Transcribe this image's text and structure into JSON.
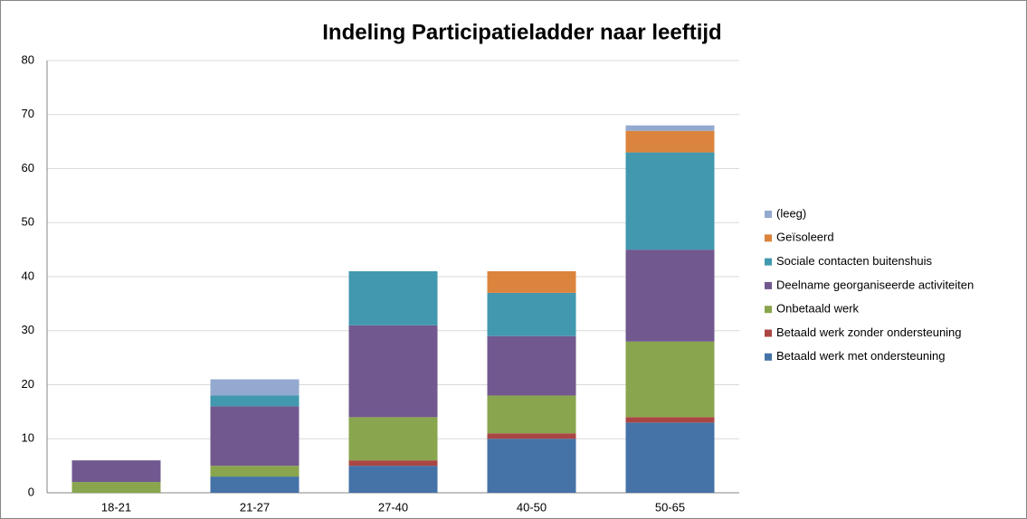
{
  "chart_data": {
    "type": "stacked_bar",
    "title": "Indeling Participatieladder naar leeftijd",
    "categories": [
      "18-21",
      "21-27",
      "27-40",
      "40-50",
      "50-65"
    ],
    "series": [
      {
        "name": "Betaald werk met ondersteuning",
        "color": "#4572a7",
        "values": [
          0,
          3,
          5,
          10,
          13
        ]
      },
      {
        "name": "Betaald werk zonder ondersteuning",
        "color": "#aa4643",
        "values": [
          0,
          0,
          1,
          1,
          1
        ]
      },
      {
        "name": "Onbetaald werk",
        "color": "#89a54e",
        "values": [
          2,
          2,
          8,
          7,
          14
        ]
      },
      {
        "name": "Deelname georganiseerde activiteiten",
        "color": "#71588f",
        "values": [
          4,
          11,
          17,
          11,
          17
        ]
      },
      {
        "name": "Sociale contacten buitenshuis",
        "color": "#4198af",
        "values": [
          0,
          2,
          10,
          8,
          18
        ]
      },
      {
        "name": "Geïsoleerd",
        "color": "#db843d",
        "values": [
          0,
          0,
          0,
          4,
          4
        ]
      },
      {
        "name": "(leeg)",
        "color": "#93a9cf",
        "values": [
          0,
          3,
          0,
          0,
          1
        ]
      }
    ],
    "ylim": [
      0,
      80
    ],
    "yticks": [
      0,
      10,
      20,
      30,
      40,
      50,
      60,
      70,
      80
    ],
    "grid": true,
    "legend": "right"
  }
}
